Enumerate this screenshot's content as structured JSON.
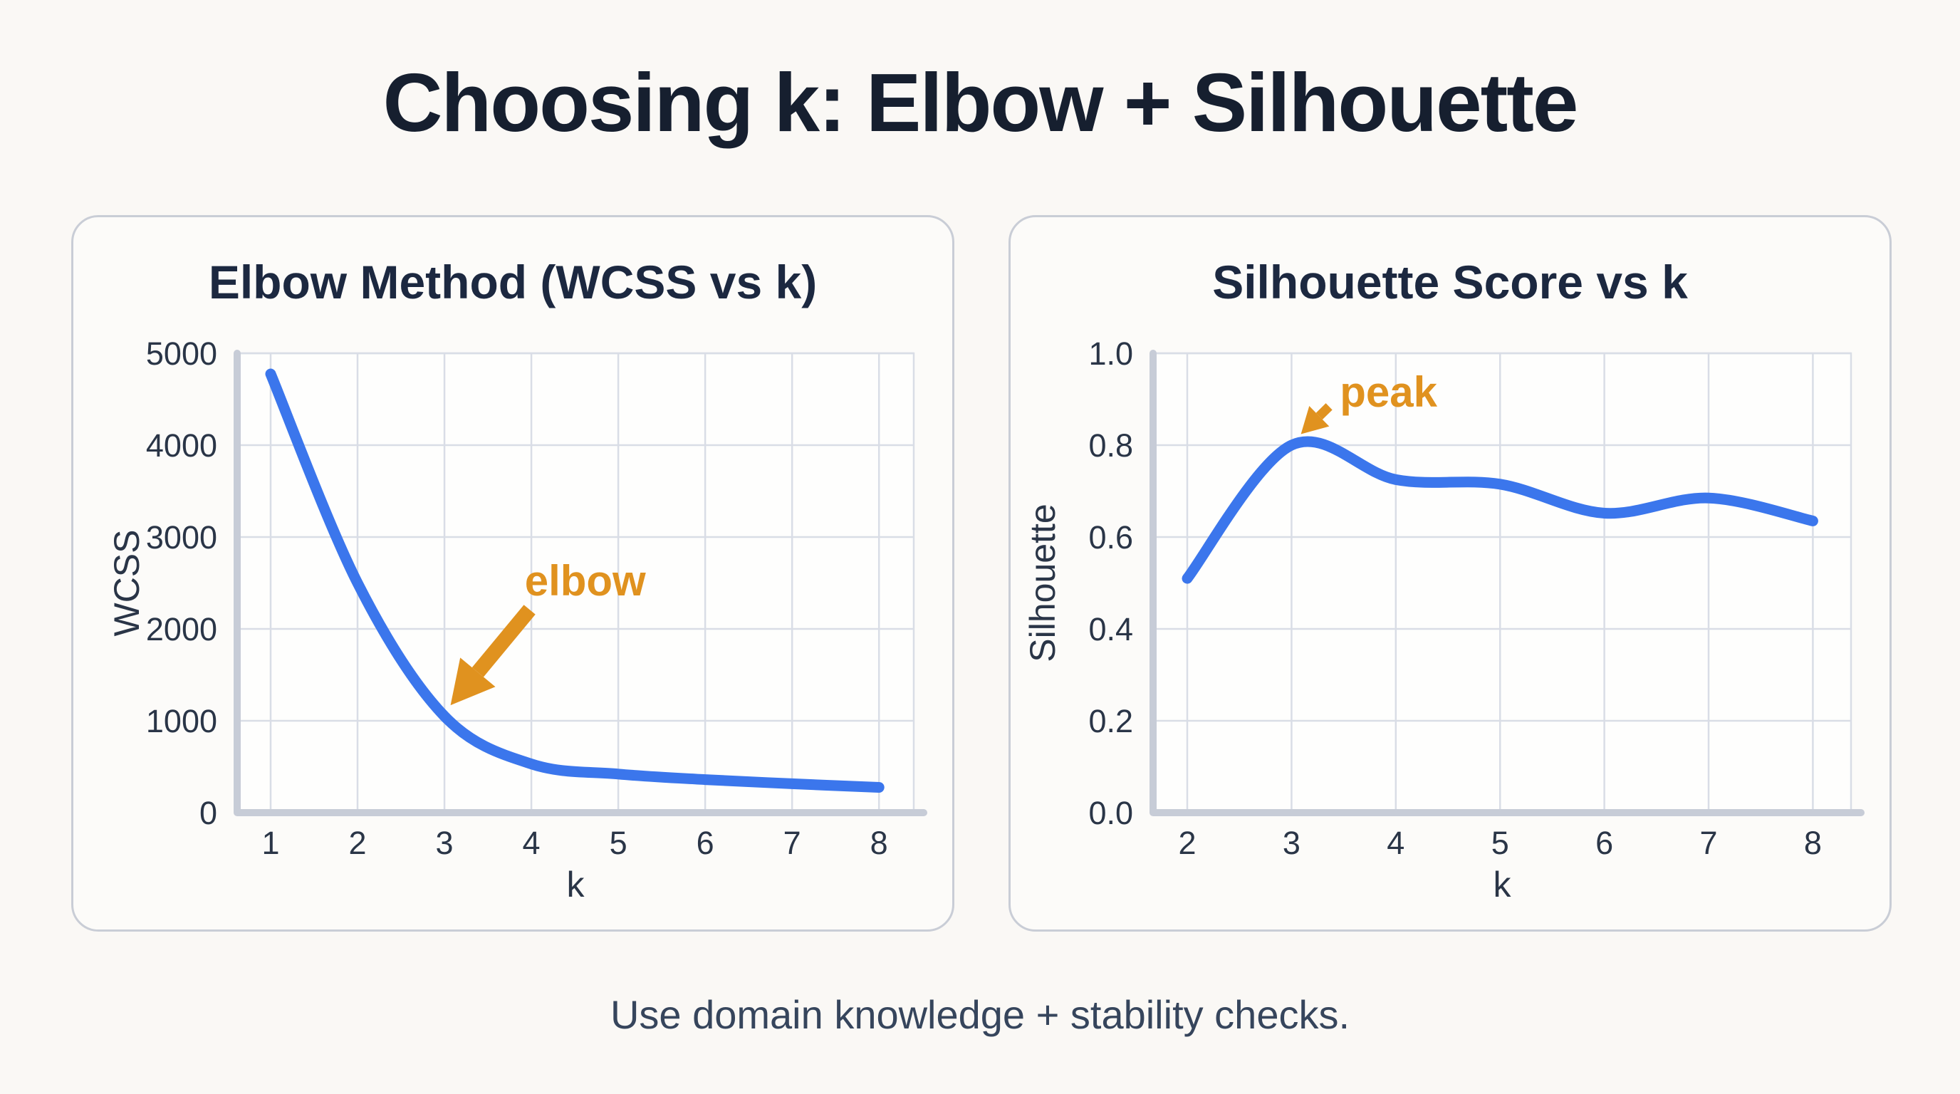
{
  "page": {
    "title": "Choosing k: Elbow + Silhouette",
    "footer": "Use domain knowledge + stability checks.",
    "colors": {
      "background": "#FAF8F5",
      "card_background": "#FCFBF9",
      "card_border": "#C9CDD6",
      "title_text": "#161F2F",
      "card_title_text": "#1C2840",
      "tick_text": "#2A3547",
      "footer_text": "#36455C",
      "gridline": "#D9DDE6",
      "axis_frame": "#C7CCD7",
      "curve_blue": "#3B76EC",
      "annotation_orange": "#E0921F"
    }
  },
  "chart_data": [
    {
      "type": "line",
      "title": "Elbow Method (WCSS vs k)",
      "xlabel": "k",
      "ylabel": "WCSS",
      "x": [
        1,
        2,
        3,
        4,
        5,
        6,
        7,
        8
      ],
      "values": [
        4775,
        2500,
        1050,
        530,
        420,
        360,
        315,
        275
      ],
      "xlim": [
        0.615,
        8.4
      ],
      "ylim": [
        0,
        5000
      ],
      "xticks": [
        1,
        2,
        3,
        4,
        5,
        6,
        7,
        8
      ],
      "xtick_labels": [
        "1",
        "2",
        "3",
        "4",
        "5",
        "6",
        "7",
        "8"
      ],
      "yticks": [
        0,
        1000,
        2000,
        3000,
        4000,
        5000
      ],
      "ytick_labels": [
        "0",
        "1000",
        "2000",
        "3000",
        "4000",
        "5000"
      ],
      "grid": true,
      "legend": false,
      "line_color": "#3B76EC",
      "annotation": {
        "text": "elbow",
        "color": "#E0921F",
        "text_x": 4.62,
        "text_y": 2520,
        "arrow_from_x": 3.98,
        "arrow_from_y": 2210,
        "arrow_to_x": 3.07,
        "arrow_to_y": 1170,
        "shaft_width": 21,
        "head_length": 60,
        "head_width": 64
      }
    },
    {
      "type": "line",
      "title": "Silhouette Score vs k",
      "xlabel": "k",
      "ylabel": "Silhouette",
      "x": [
        2,
        3,
        4,
        5,
        6,
        7,
        8
      ],
      "values": [
        0.51,
        0.8,
        0.725,
        0.715,
        0.652,
        0.685,
        0.635
      ],
      "xlim": [
        1.672,
        8.366
      ],
      "ylim": [
        0.0,
        1.0
      ],
      "xticks": [
        2,
        3,
        4,
        5,
        6,
        7,
        8
      ],
      "xtick_labels": [
        "2",
        "3",
        "4",
        "5",
        "6",
        "7",
        "8"
      ],
      "yticks": [
        0.0,
        0.2,
        0.4,
        0.6,
        0.8,
        1.0
      ],
      "ytick_labels": [
        "0.0",
        "0.2",
        "0.4",
        "0.6",
        "0.8",
        "1.0"
      ],
      "grid": true,
      "legend": false,
      "line_color": "#3B76EC",
      "annotation": {
        "text": "peak",
        "color": "#E0921F",
        "text_x": 3.93,
        "text_y": 0.915,
        "arrow_from_x": 3.36,
        "arrow_from_y": 0.884,
        "arrow_to_x": 3.09,
        "arrow_to_y": 0.824,
        "shaft_width": 13,
        "head_length": 36,
        "head_width": 40
      }
    }
  ]
}
